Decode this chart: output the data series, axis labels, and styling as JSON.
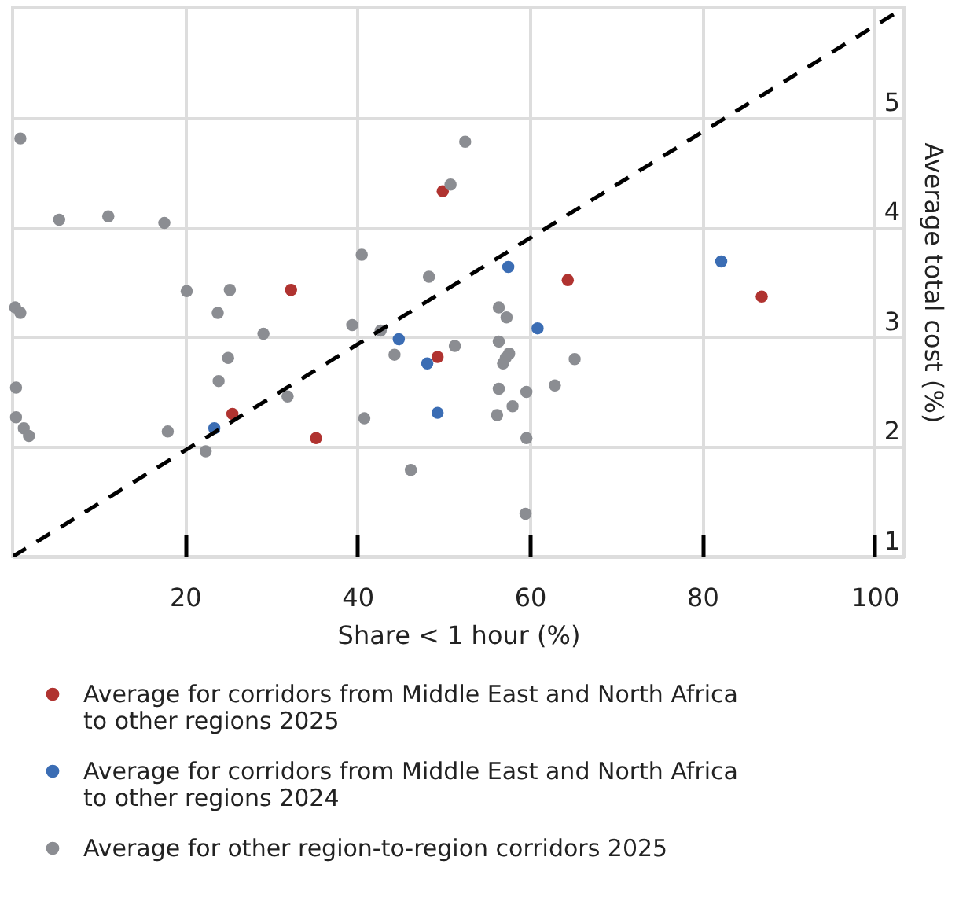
{
  "chart_data": {
    "type": "scatter",
    "xlabel": "Share < 1 hour (%)",
    "ylabel": "Average total cost (%)",
    "xlim": [
      0,
      103.4
    ],
    "xticks": [
      20,
      40,
      60,
      80,
      100
    ],
    "ylim": [
      1,
      6
    ],
    "yticks": [
      1,
      2,
      3,
      4,
      5
    ],
    "grid": true,
    "legend": "bottom left",
    "marker": "circle",
    "series": [
      {
        "name": "Average for corridors from Middle East and North Africa to other regions 2025",
        "color": "#b03330",
        "x": [
          49.9,
          32.3,
          64.4,
          86.9,
          49.3,
          25.5,
          35.2
        ],
        "values": [
          4.33,
          3.43,
          3.52,
          3.37,
          2.82,
          2.3,
          2.08
        ]
      },
      {
        "name": "Average for corridors from Middle East and North Africa to other regions 2024",
        "color": "#3b6db4",
        "x": [
          57.5,
          82.2,
          60.9,
          44.8,
          48.1,
          49.3,
          23.4
        ],
        "values": [
          3.64,
          3.69,
          3.08,
          2.98,
          2.76,
          2.31,
          2.17
        ]
      },
      {
        "name": "Average for other region-to-region corridors 2025",
        "color": "#8b8d92",
        "x": [
          0.9,
          5.4,
          11.1,
          17.6,
          52.5,
          50.8,
          40.5,
          48.3,
          20.2,
          25.2,
          23.8,
          0.3,
          0.9,
          29.1,
          39.4,
          42.7,
          51.3,
          44.3,
          25.0,
          23.9,
          0.4,
          31.9,
          40.8,
          18.0,
          0.4,
          1.3,
          1.9,
          22.4,
          46.2,
          56.4,
          57.3,
          56.4,
          57.6,
          57.2,
          56.9,
          65.2,
          62.9,
          56.4,
          59.6,
          58.0,
          56.2,
          59.6,
          59.5
        ],
        "values": [
          4.81,
          4.07,
          4.1,
          4.04,
          4.78,
          4.39,
          3.75,
          3.55,
          3.42,
          3.43,
          3.22,
          3.27,
          3.22,
          3.03,
          3.11,
          3.06,
          2.92,
          2.84,
          2.81,
          2.6,
          2.54,
          2.46,
          2.26,
          2.14,
          2.27,
          2.17,
          2.1,
          1.96,
          1.79,
          3.27,
          3.18,
          2.96,
          2.85,
          2.81,
          2.76,
          2.8,
          2.56,
          2.53,
          2.5,
          2.37,
          2.29,
          2.08,
          1.39
        ]
      },
      {
        "type": "line",
        "color": "#000000",
        "line_style": "dashed",
        "marker": "none",
        "x": [
          0,
          103.4
        ],
        "values": [
          1,
          6
        ]
      }
    ]
  }
}
